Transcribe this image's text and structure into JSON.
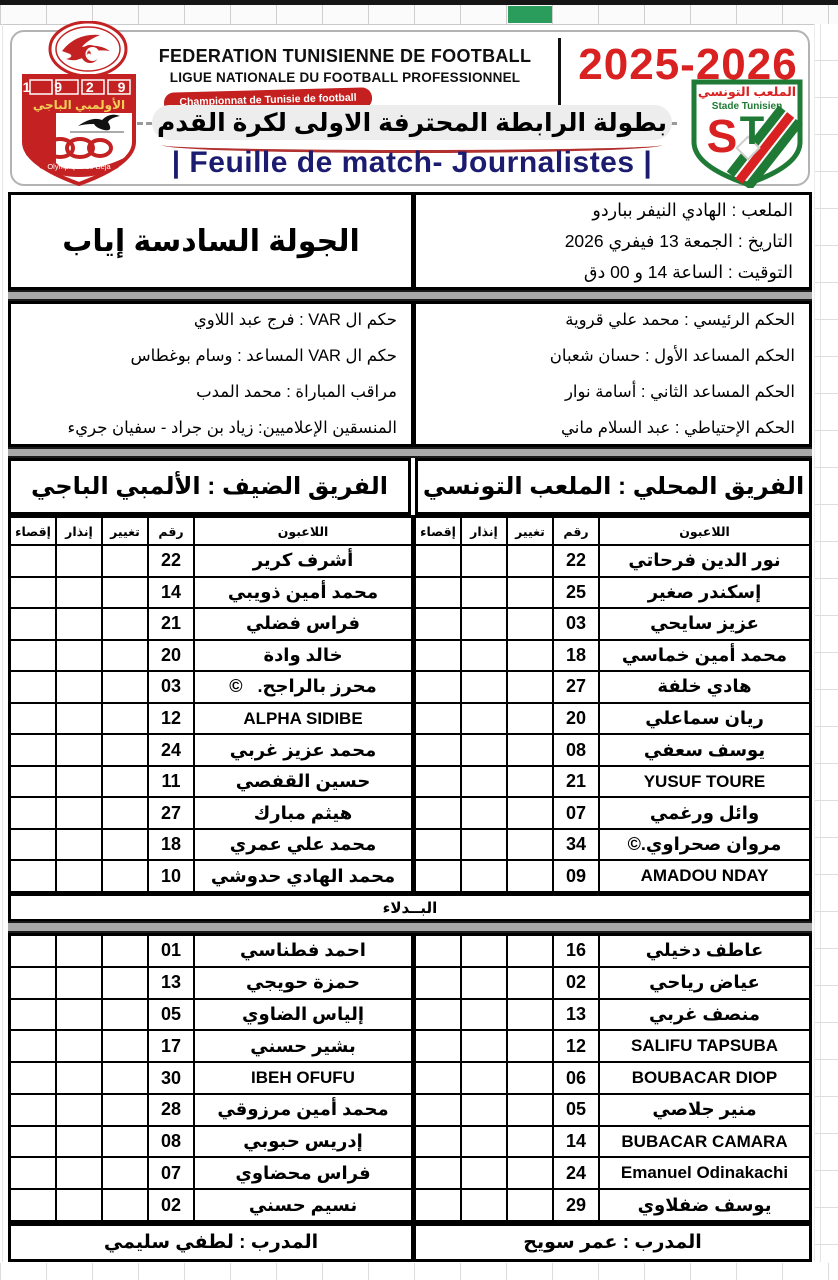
{
  "header": {
    "federation_line1": "FEDERATION TUNISIENNE DE FOOTBALL",
    "federation_line2": "LIGUE NATIONALE DU FOOTBALL PROFESSIONNEL",
    "season": "2025-2026",
    "championship_fr": "Championnat de Tunisie de football",
    "championship_ar": "بطولة الرابطة المحترفة الاولى لكرة القدم",
    "sheet_title": "| Feuille de match- Journalistes |",
    "home_logo": {
      "name_ar": "الملعب التونسي",
      "name_fr": "Stade Tunisien",
      "mono_s": "S",
      "mono_t": "T"
    },
    "away_logo": {
      "year": "1 9 2 9",
      "name_ar": "الأولمبي الباجي",
      "name_fr": "Olympique de Béja"
    }
  },
  "match_info": {
    "round": "الجولة السادسة إياب",
    "stadium": "الملعب : الهادي النيفر بباردو",
    "date": "التاريخ : الجمعة 13 فيفري 2026",
    "time": "التوقيت : الساعة 14 و 00 دق"
  },
  "officials": {
    "right_lines": [
      "الحكم الرئيسي : محمد علي قروية",
      "الحكم المساعد الأول : حسان شعبان",
      "الحكم المساعد الثاني : أسامة نوار",
      "الحكم الإحتياطي : عبد السلام ماني"
    ],
    "left_lines": [
      "حكم ال VAR :  فرج عبد اللاوي",
      "حكم ال VAR المساعد : وسام بوغطاس",
      "مراقب المباراة : محمد المدب",
      "المنسقين الإعلاميين: زياد بن جراد - سفيان جريء"
    ]
  },
  "columns": {
    "players": "اللاعبون",
    "number": "رقم",
    "substitution": "تغيير",
    "warning": "إنذار",
    "expulsion": "إقصاء"
  },
  "substitutes_label": "البــدلاء",
  "home_team": {
    "title": "الفريق المحلي : الملعب التونسي",
    "coach": "المدرب : عمر سويح",
    "starters": [
      {
        "num": "22",
        "name": "نور الدين فرحاتي"
      },
      {
        "num": "25",
        "name": "إسكندر صغير"
      },
      {
        "num": "03",
        "name": "عزيز سايحي"
      },
      {
        "num": "18",
        "name": "محمد أمين خماسي"
      },
      {
        "num": "27",
        "name": "هادي خلفة"
      },
      {
        "num": "20",
        "name": "ريان سماعلي"
      },
      {
        "num": "08",
        "name": "يوسف سعفي"
      },
      {
        "num": "21",
        "name": "YUSUF TOURE"
      },
      {
        "num": "07",
        "name": "وائل ورغمي"
      },
      {
        "num": "34",
        "name": "مروان صحراوي.©"
      },
      {
        "num": "09",
        "name": "AMADOU NDAY"
      }
    ],
    "subs": [
      {
        "num": "16",
        "name": "عاطف دخيلي"
      },
      {
        "num": "02",
        "name": "عياض رياحي"
      },
      {
        "num": "13",
        "name": "منصف غربي"
      },
      {
        "num": "12",
        "name": "SALIFU TAPSUBA"
      },
      {
        "num": "06",
        "name": "BOUBACAR DIOP"
      },
      {
        "num": "05",
        "name": "منير جلاصي"
      },
      {
        "num": "14",
        "name": "BUBACAR CAMARA"
      },
      {
        "num": "24",
        "name": "Emanuel Odinakachi"
      },
      {
        "num": "29",
        "name": "يوسف ضفلاوي"
      }
    ]
  },
  "away_team": {
    "title": "الفريق الضيف : الألمبي الباجي",
    "coach": "المدرب : لطفي سليمي",
    "starters": [
      {
        "num": "22",
        "name": "أشرف كرير"
      },
      {
        "num": "14",
        "name": "محمد أمين ذويبي"
      },
      {
        "num": "21",
        "name": "فراس فضلي"
      },
      {
        "num": "20",
        "name": "خالد وادة"
      },
      {
        "num": "03",
        "name": "محرز بالراجح.   ©"
      },
      {
        "num": "12",
        "name": "ALPHA SIDIBE"
      },
      {
        "num": "24",
        "name": "محمد عزيز غربي"
      },
      {
        "num": "11",
        "name": "حسين القفصي"
      },
      {
        "num": "27",
        "name": "هيثم مبارك"
      },
      {
        "num": "18",
        "name": "محمد علي عمري"
      },
      {
        "num": "10",
        "name": "محمد الهادي حدوشي"
      }
    ],
    "subs": [
      {
        "num": "01",
        "name": "احمد فطناسي"
      },
      {
        "num": "13",
        "name": "حمزة حويجي"
      },
      {
        "num": "05",
        "name": "إلياس الضاوي"
      },
      {
        "num": "17",
        "name": "بشير حسني"
      },
      {
        "num": "30",
        "name": "IBEH OFUFU"
      },
      {
        "num": "28",
        "name": "محمد أمين مرزوقي"
      },
      {
        "num": "08",
        "name": "إدريس حبوبي"
      },
      {
        "num": "07",
        "name": "فراس محضاوي"
      },
      {
        "num": "02",
        "name": "نسيم حسني"
      }
    ]
  },
  "colors": {
    "season_red": "#d92121",
    "title_navy": "#1b1b70",
    "pill_red": "#c4201f",
    "st_green": "#1e7a34",
    "beja_red": "#c42222",
    "gray_bar": "#a9a9a9",
    "excel_green": "#2a9d5c"
  }
}
